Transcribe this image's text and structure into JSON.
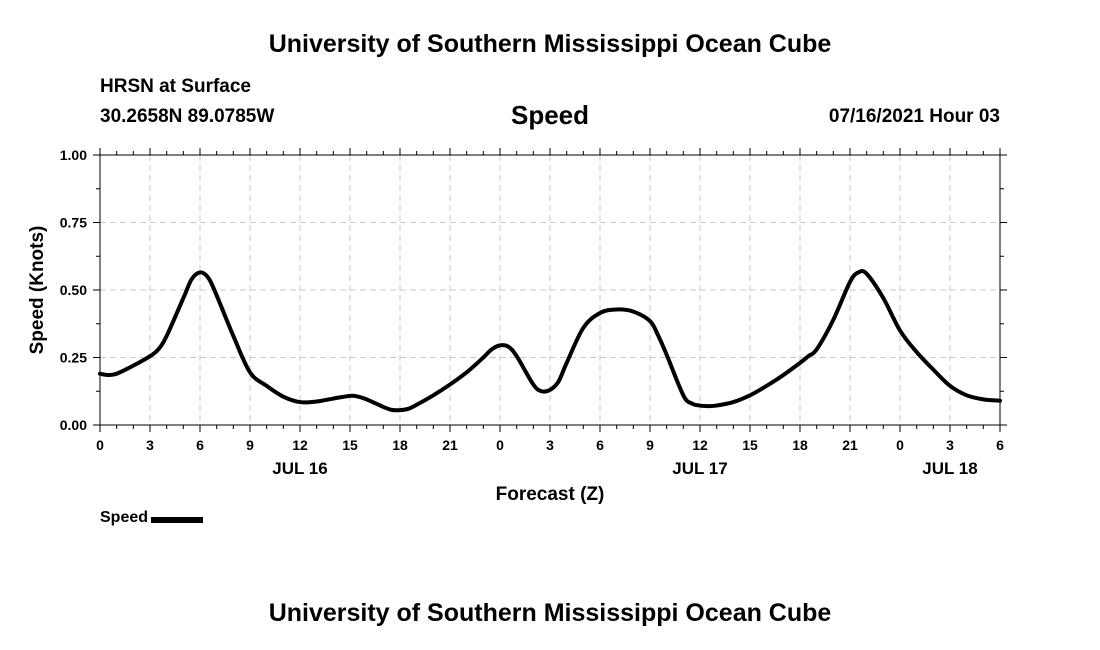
{
  "header": {
    "title": "University of Southern Mississippi Ocean Cube",
    "station": "HRSN at Surface",
    "coordinates": "30.2658N  89.0785W",
    "datetime": "07/16/2021 Hour 03"
  },
  "footer": {
    "title": "University of Southern Mississippi Ocean Cube"
  },
  "legend": {
    "label": "Speed"
  },
  "chart_data": {
    "type": "line",
    "title": "Speed",
    "xlabel": "Forecast (Z)",
    "ylabel": "Speed (Knots)",
    "x_unit": "forecast hour from 00Z JUL 16",
    "xlim": [
      0,
      54
    ],
    "ylim": [
      0,
      1
    ],
    "grid": true,
    "legend_position": "bottom-left",
    "x_ticks": [
      {
        "hour": 0,
        "label": "0"
      },
      {
        "hour": 3,
        "label": "3"
      },
      {
        "hour": 6,
        "label": "6"
      },
      {
        "hour": 9,
        "label": "9"
      },
      {
        "hour": 12,
        "label": "12"
      },
      {
        "hour": 15,
        "label": "15"
      },
      {
        "hour": 18,
        "label": "18"
      },
      {
        "hour": 21,
        "label": "21"
      },
      {
        "hour": 24,
        "label": "0"
      },
      {
        "hour": 27,
        "label": "3"
      },
      {
        "hour": 30,
        "label": "6"
      },
      {
        "hour": 33,
        "label": "9"
      },
      {
        "hour": 36,
        "label": "12"
      },
      {
        "hour": 39,
        "label": "15"
      },
      {
        "hour": 42,
        "label": "18"
      },
      {
        "hour": 45,
        "label": "21"
      },
      {
        "hour": 48,
        "label": "0"
      },
      {
        "hour": 51,
        "label": "3"
      },
      {
        "hour": 54,
        "label": "6"
      }
    ],
    "date_labels": [
      {
        "hour": 12,
        "label": "JUL 16"
      },
      {
        "hour": 36,
        "label": "JUL 17"
      },
      {
        "hour": 51,
        "label": "JUL 18"
      }
    ],
    "y_ticks": [
      {
        "value": 0,
        "label": "0.00"
      },
      {
        "value": 0.25,
        "label": "0.25"
      },
      {
        "value": 0.5,
        "label": "0.50"
      },
      {
        "value": 0.75,
        "label": "0.75"
      },
      {
        "value": 1,
        "label": "1.00"
      }
    ],
    "series": [
      {
        "name": "Speed",
        "color": "#000000",
        "x": [
          0,
          0.5,
          1,
          2,
          3,
          3.5,
          4,
          5,
          5.5,
          6,
          6.5,
          7,
          8,
          9,
          10,
          11,
          12,
          13,
          14,
          15,
          15.5,
          16,
          17,
          17.5,
          18,
          18.5,
          19,
          20,
          21,
          22,
          23,
          23.5,
          24,
          24.5,
          25,
          26,
          26.5,
          27,
          27.5,
          28,
          29,
          30,
          31,
          32,
          33,
          33.5,
          34,
          35,
          35.5,
          36,
          36.5,
          37,
          38,
          39,
          40,
          41,
          42,
          42.5,
          43,
          44,
          45,
          45.5,
          46,
          47,
          48,
          49,
          50,
          51,
          52,
          53,
          54
        ],
        "values": [
          0.19,
          0.185,
          0.19,
          0.22,
          0.255,
          0.28,
          0.33,
          0.47,
          0.54,
          0.565,
          0.545,
          0.48,
          0.33,
          0.195,
          0.145,
          0.105,
          0.085,
          0.087,
          0.098,
          0.108,
          0.105,
          0.095,
          0.067,
          0.056,
          0.055,
          0.06,
          0.075,
          0.11,
          0.15,
          0.195,
          0.25,
          0.28,
          0.295,
          0.29,
          0.255,
          0.15,
          0.125,
          0.13,
          0.16,
          0.23,
          0.36,
          0.415,
          0.428,
          0.42,
          0.385,
          0.33,
          0.26,
          0.11,
          0.08,
          0.072,
          0.07,
          0.072,
          0.085,
          0.11,
          0.145,
          0.185,
          0.23,
          0.255,
          0.28,
          0.39,
          0.53,
          0.565,
          0.56,
          0.47,
          0.35,
          0.27,
          0.205,
          0.145,
          0.11,
          0.095,
          0.09
        ]
      }
    ]
  }
}
